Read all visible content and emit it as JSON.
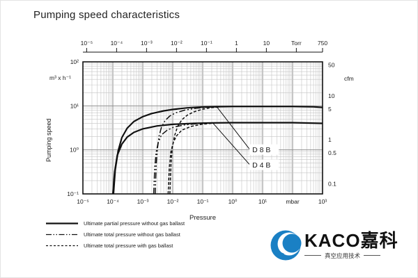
{
  "chart_data": {
    "type": "line",
    "title": "Pumping speed characteristics",
    "xlabel": "Pressure",
    "ylabel": "Pumping speed",
    "x_scale": "log",
    "y_scale": "log",
    "grid": true,
    "xlim": [
      1e-05,
      1000
    ],
    "ylim": [
      0.1,
      100
    ],
    "units": {
      "y_left": "m³ x h⁻¹",
      "y_right": "cfm",
      "x_bottom": "mbar",
      "x_top": "Torr"
    },
    "torr_to_mbar": 1.33322,
    "m3h_per_cfm": 1.699,
    "bottom_ticks": [
      {
        "v": 1e-05,
        "t": "10⁻⁵"
      },
      {
        "v": 0.0001,
        "t": "10⁻⁴"
      },
      {
        "v": 0.001,
        "t": "10⁻³"
      },
      {
        "v": 0.01,
        "t": "10⁻²"
      },
      {
        "v": 0.1,
        "t": "10⁻¹"
      },
      {
        "v": 1,
        "t": "10⁰"
      },
      {
        "v": 10,
        "t": "10¹"
      },
      {
        "v": 100,
        "t": "mbar"
      },
      {
        "v": 1000,
        "t": "10³"
      }
    ],
    "top_ticks": [
      {
        "v": 1e-05,
        "t": "10⁻⁵"
      },
      {
        "v": 0.0001,
        "t": "10⁻⁴"
      },
      {
        "v": 0.001,
        "t": "10⁻³"
      },
      {
        "v": 0.01,
        "t": "10⁻²"
      },
      {
        "v": 0.1,
        "t": "10⁻¹"
      },
      {
        "v": 1,
        "t": "1"
      },
      {
        "v": 10,
        "t": "10"
      },
      {
        "v": 100,
        "t": "Torr"
      },
      {
        "v": 750,
        "t": "750"
      }
    ],
    "left_ticks": [
      {
        "v": 0.1,
        "t": "10⁻¹"
      },
      {
        "v": 1,
        "t": "10⁰"
      },
      {
        "v": 10,
        "t": "10¹"
      },
      {
        "v": 100,
        "t": "10²"
      }
    ],
    "right_ticks": [
      {
        "v": 50,
        "t": "50"
      },
      {
        "v": 10,
        "t": "10"
      },
      {
        "v": 5,
        "t": "5"
      },
      {
        "v": 1,
        "t": "1"
      },
      {
        "v": 0.5,
        "t": "0.5"
      },
      {
        "v": 0.1,
        "t": "0.1"
      }
    ],
    "series": [
      {
        "id": "d8b-partial-without-ballast",
        "pump": "D 8 B",
        "style": "solid",
        "points": [
          [
            0.000105,
            0.1
          ],
          [
            0.00012,
            0.35
          ],
          [
            0.00015,
            0.95
          ],
          [
            0.0002,
            1.9
          ],
          [
            0.0003,
            3.1
          ],
          [
            0.0005,
            4.4
          ],
          [
            0.001,
            5.7
          ],
          [
            0.002,
            6.7
          ],
          [
            0.005,
            7.7
          ],
          [
            0.01,
            8.3
          ],
          [
            0.03,
            9.0
          ],
          [
            0.1,
            9.4
          ],
          [
            0.3,
            9.6
          ],
          [
            1,
            9.7
          ],
          [
            10,
            9.7
          ],
          [
            100,
            9.7
          ],
          [
            500,
            9.5
          ],
          [
            1000,
            9.2
          ]
        ]
      },
      {
        "id": "d4b-partial-without-ballast",
        "pump": "D 4 B",
        "style": "solid",
        "points": [
          [
            0.0001,
            0.1
          ],
          [
            0.000115,
            0.32
          ],
          [
            0.00014,
            0.75
          ],
          [
            0.0002,
            1.35
          ],
          [
            0.0003,
            1.95
          ],
          [
            0.0005,
            2.5
          ],
          [
            0.001,
            3.0
          ],
          [
            0.003,
            3.5
          ],
          [
            0.01,
            3.8
          ],
          [
            0.05,
            4.0
          ],
          [
            0.2,
            4.1
          ],
          [
            1,
            4.15
          ],
          [
            100,
            4.15
          ],
          [
            1000,
            4.0
          ]
        ]
      },
      {
        "id": "d8b-total-without-ballast",
        "pump": "D 8 B",
        "style": "dashdot",
        "points": [
          [
            0.0026,
            0.1
          ],
          [
            0.0028,
            0.45
          ],
          [
            0.0031,
            1.1
          ],
          [
            0.0035,
            2.1
          ],
          [
            0.0042,
            3.3
          ],
          [
            0.0055,
            4.6
          ],
          [
            0.008,
            5.9
          ],
          [
            0.013,
            7.0
          ],
          [
            0.025,
            8.0
          ],
          [
            0.06,
            8.8
          ],
          [
            0.15,
            9.3
          ],
          [
            0.3,
            9.6
          ]
        ]
      },
      {
        "id": "d4b-total-without-ballast",
        "pump": "D 4 B",
        "style": "dashdot",
        "points": [
          [
            0.0023,
            0.1
          ],
          [
            0.0025,
            0.4
          ],
          [
            0.0028,
            0.9
          ],
          [
            0.0033,
            1.5
          ],
          [
            0.0042,
            2.2
          ],
          [
            0.0065,
            2.8
          ],
          [
            0.011,
            3.3
          ],
          [
            0.025,
            3.7
          ],
          [
            0.07,
            3.95
          ],
          [
            0.15,
            4.1
          ]
        ]
      },
      {
        "id": "d8b-total-with-ballast",
        "pump": "D 8 B",
        "style": "dashed",
        "points": [
          [
            0.008,
            0.1
          ],
          [
            0.0087,
            0.45
          ],
          [
            0.0096,
            1.1
          ],
          [
            0.0115,
            2.1
          ],
          [
            0.0145,
            3.4
          ],
          [
            0.02,
            4.8
          ],
          [
            0.03,
            6.1
          ],
          [
            0.05,
            7.3
          ],
          [
            0.1,
            8.4
          ],
          [
            0.2,
            9.1
          ],
          [
            0.4,
            9.5
          ]
        ]
      },
      {
        "id": "d4b-total-with-ballast",
        "pump": "D 4 B",
        "style": "dashed",
        "points": [
          [
            0.007,
            0.1
          ],
          [
            0.0077,
            0.4
          ],
          [
            0.0086,
            0.9
          ],
          [
            0.0105,
            1.5
          ],
          [
            0.0135,
            2.1
          ],
          [
            0.02,
            2.8
          ],
          [
            0.04,
            3.4
          ],
          [
            0.09,
            3.8
          ],
          [
            0.2,
            4.0
          ]
        ]
      }
    ],
    "annotations": [
      {
        "label": "D 8 B",
        "text_at": [
          4.5,
          1.0
        ],
        "line_from": [
          3.6,
          1.05
        ],
        "line_to": [
          0.3,
          9.4
        ]
      },
      {
        "label": "D 4 B",
        "text_at": [
          4.5,
          0.45
        ],
        "line_from": [
          3.6,
          0.47
        ],
        "line_to": [
          0.22,
          4.05
        ]
      }
    ]
  },
  "legend": {
    "items": [
      {
        "style": "solid",
        "label": "Ultimate partial pressure without gas ballast"
      },
      {
        "style": "dashdot",
        "label": "Ultimate total pressure without gas ballast"
      },
      {
        "style": "dashed",
        "label": "Ultimate total pressure with gas ballast"
      }
    ]
  },
  "logo": {
    "name": "KACO",
    "name_cn": "嘉科",
    "subtitle": "真空应用技术",
    "brand_color": "#1a80c4"
  }
}
